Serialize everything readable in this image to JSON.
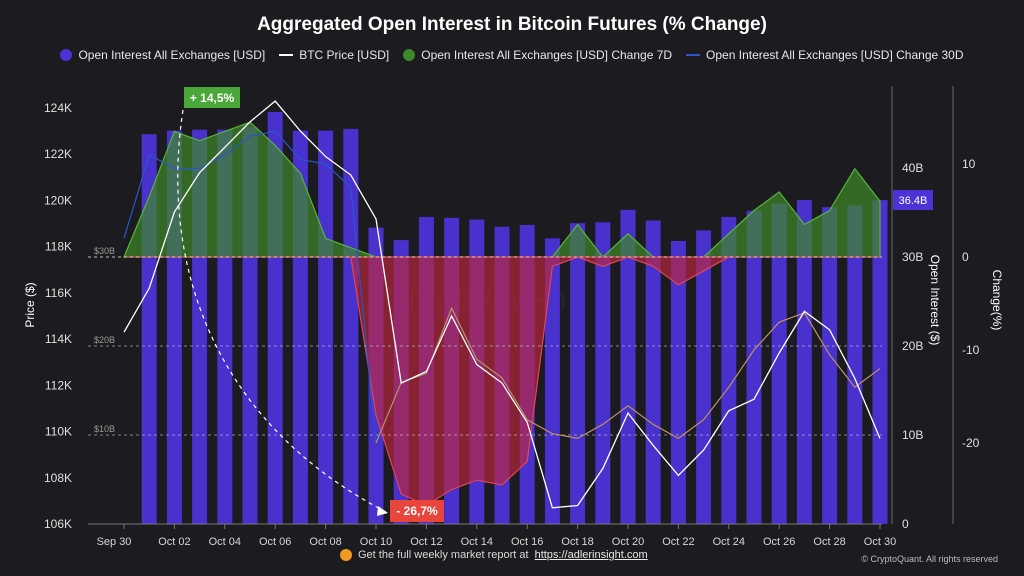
{
  "title": "Aggregated Open Interest in Bitcoin Futures (% Change)",
  "legend": [
    {
      "label": "Open Interest All Exchanges [USD]",
      "color": "#4b33d6",
      "kind": "dot"
    },
    {
      "label": "BTC Price [USD]",
      "color": "#ffffff",
      "kind": "line"
    },
    {
      "label": "Open Interest All Exchanges [USD] Change 7D",
      "color": "#3f8a28",
      "kind": "dot"
    },
    {
      "label": "Open Interest All Exchanges [USD] Change 30D",
      "color": "#2b56c8",
      "kind": "line"
    }
  ],
  "footer": {
    "prefix": "Get the full weekly market report at ",
    "link": "https://adlerinsight.com"
  },
  "copyright": "© CryptoQuant. All rights reserved",
  "colors": {
    "bars": "#4b33d6",
    "price": "#ffffff",
    "change7d_pos": "#3f8a28",
    "change7d_neg": "#c0273a",
    "change30d": "#2b56c8",
    "change30d_neg": "#e8a040",
    "badge": "#4b33d6"
  },
  "chart_data": {
    "type": "bar",
    "x": [
      "Sep 30",
      "Oct 01",
      "Oct 02",
      "Oct 03",
      "Oct 04",
      "Oct 05",
      "Oct 06",
      "Oct 07",
      "Oct 08",
      "Oct 09",
      "Oct 10",
      "Oct 11",
      "Oct 12",
      "Oct 13",
      "Oct 14",
      "Oct 15",
      "Oct 16",
      "Oct 17",
      "Oct 18",
      "Oct 19",
      "Oct 20",
      "Oct 21",
      "Oct 22",
      "Oct 23",
      "Oct 24",
      "Oct 25",
      "Oct 26",
      "Oct 27",
      "Oct 28",
      "Oct 29",
      "Oct 30"
    ],
    "xtick_labels": [
      "Sep 30",
      "Oct 02",
      "Oct 04",
      "Oct 06",
      "Oct 08",
      "Oct 10",
      "Oct 12",
      "Oct 14",
      "Oct 16",
      "Oct 18",
      "Oct 20",
      "Oct 22",
      "Oct 24",
      "Oct 26",
      "Oct 28",
      "Oct 30"
    ],
    "series": [
      {
        "name": "Open Interest All Exchanges [USD]",
        "axis": "oi",
        "values": [
          null,
          43.8,
          44.2,
          44.3,
          44.3,
          44.6,
          46.3,
          44.2,
          44.2,
          44.4,
          33.3,
          31.9,
          34.5,
          34.4,
          34.2,
          33.4,
          33.6,
          32.1,
          33.8,
          33.9,
          35.3,
          34.1,
          31.8,
          33.0,
          34.5,
          35.2,
          36.0,
          36.4,
          35.6,
          35.8,
          36.4
        ]
      },
      {
        "name": "BTC Price [USD]",
        "axis": "price",
        "values": [
          114300,
          116200,
          119500,
          121200,
          122300,
          123400,
          124300,
          123000,
          121900,
          121100,
          119200,
          112100,
          112600,
          115000,
          112900,
          112100,
          110400,
          106700,
          106800,
          108400,
          110800,
          109400,
          108100,
          109200,
          110900,
          111400,
          113400,
          115200,
          114400,
          112300,
          109700
        ]
      },
      {
        "name": "Open Interest All Exchanges [USD] Change 7D",
        "axis": "change",
        "values": [
          0,
          6.5,
          13.5,
          12.5,
          13.5,
          14.5,
          12,
          9,
          2,
          1,
          -17,
          -25.5,
          -26.7,
          -25,
          -24,
          -24.5,
          -22,
          -1,
          3.5,
          -1,
          2.5,
          -1,
          -3,
          -1.5,
          2.5,
          5,
          7,
          3.5,
          5,
          9.5,
          6
        ]
      },
      {
        "name": "Open Interest All Exchanges [USD] Change 30D",
        "axis": "change",
        "values": [
          2,
          11,
          9.5,
          9.5,
          11,
          13,
          13.5,
          10.5,
          10,
          7.5,
          -20,
          -13.5,
          -12.5,
          -5.5,
          -11,
          -13,
          -17.5,
          -19,
          -19.5,
          -18,
          -16,
          -18,
          -19.5,
          -17.5,
          -14,
          -10,
          -7,
          -6,
          -10.5,
          -14,
          -12
        ]
      }
    ],
    "axes": {
      "price": {
        "label": "Price ($)",
        "min": 106000,
        "max": 124000,
        "ticks": [
          "106K",
          "108K",
          "110K",
          "112K",
          "114K",
          "116K",
          "118K",
          "120K",
          "122K",
          "124K"
        ]
      },
      "oi": {
        "label": "Open Interest ($)",
        "min": 0,
        "max": 40,
        "ticks": [
          "0",
          "10B",
          "20B",
          "30B",
          "40B"
        ],
        "gridlabels": [
          "$10B",
          "$20B",
          "$30B"
        ]
      },
      "change": {
        "label": "Change(%)",
        "min": -25,
        "max": 15,
        "ticks": [
          "-20",
          "-10",
          "0",
          "10"
        ]
      }
    },
    "annotations": [
      {
        "text": "+ 14,5%",
        "date": "Oct 03",
        "value": 14.5,
        "color": "#4aa83a"
      },
      {
        "text": "- 26,7%",
        "date": "Oct 11",
        "value": -26.7,
        "color": "#e8453c"
      },
      {
        "text": "36.4B",
        "axis": "oi",
        "value": 36.4,
        "color": "#4b33d6"
      }
    ],
    "watermark": "CryptoQuant"
  }
}
